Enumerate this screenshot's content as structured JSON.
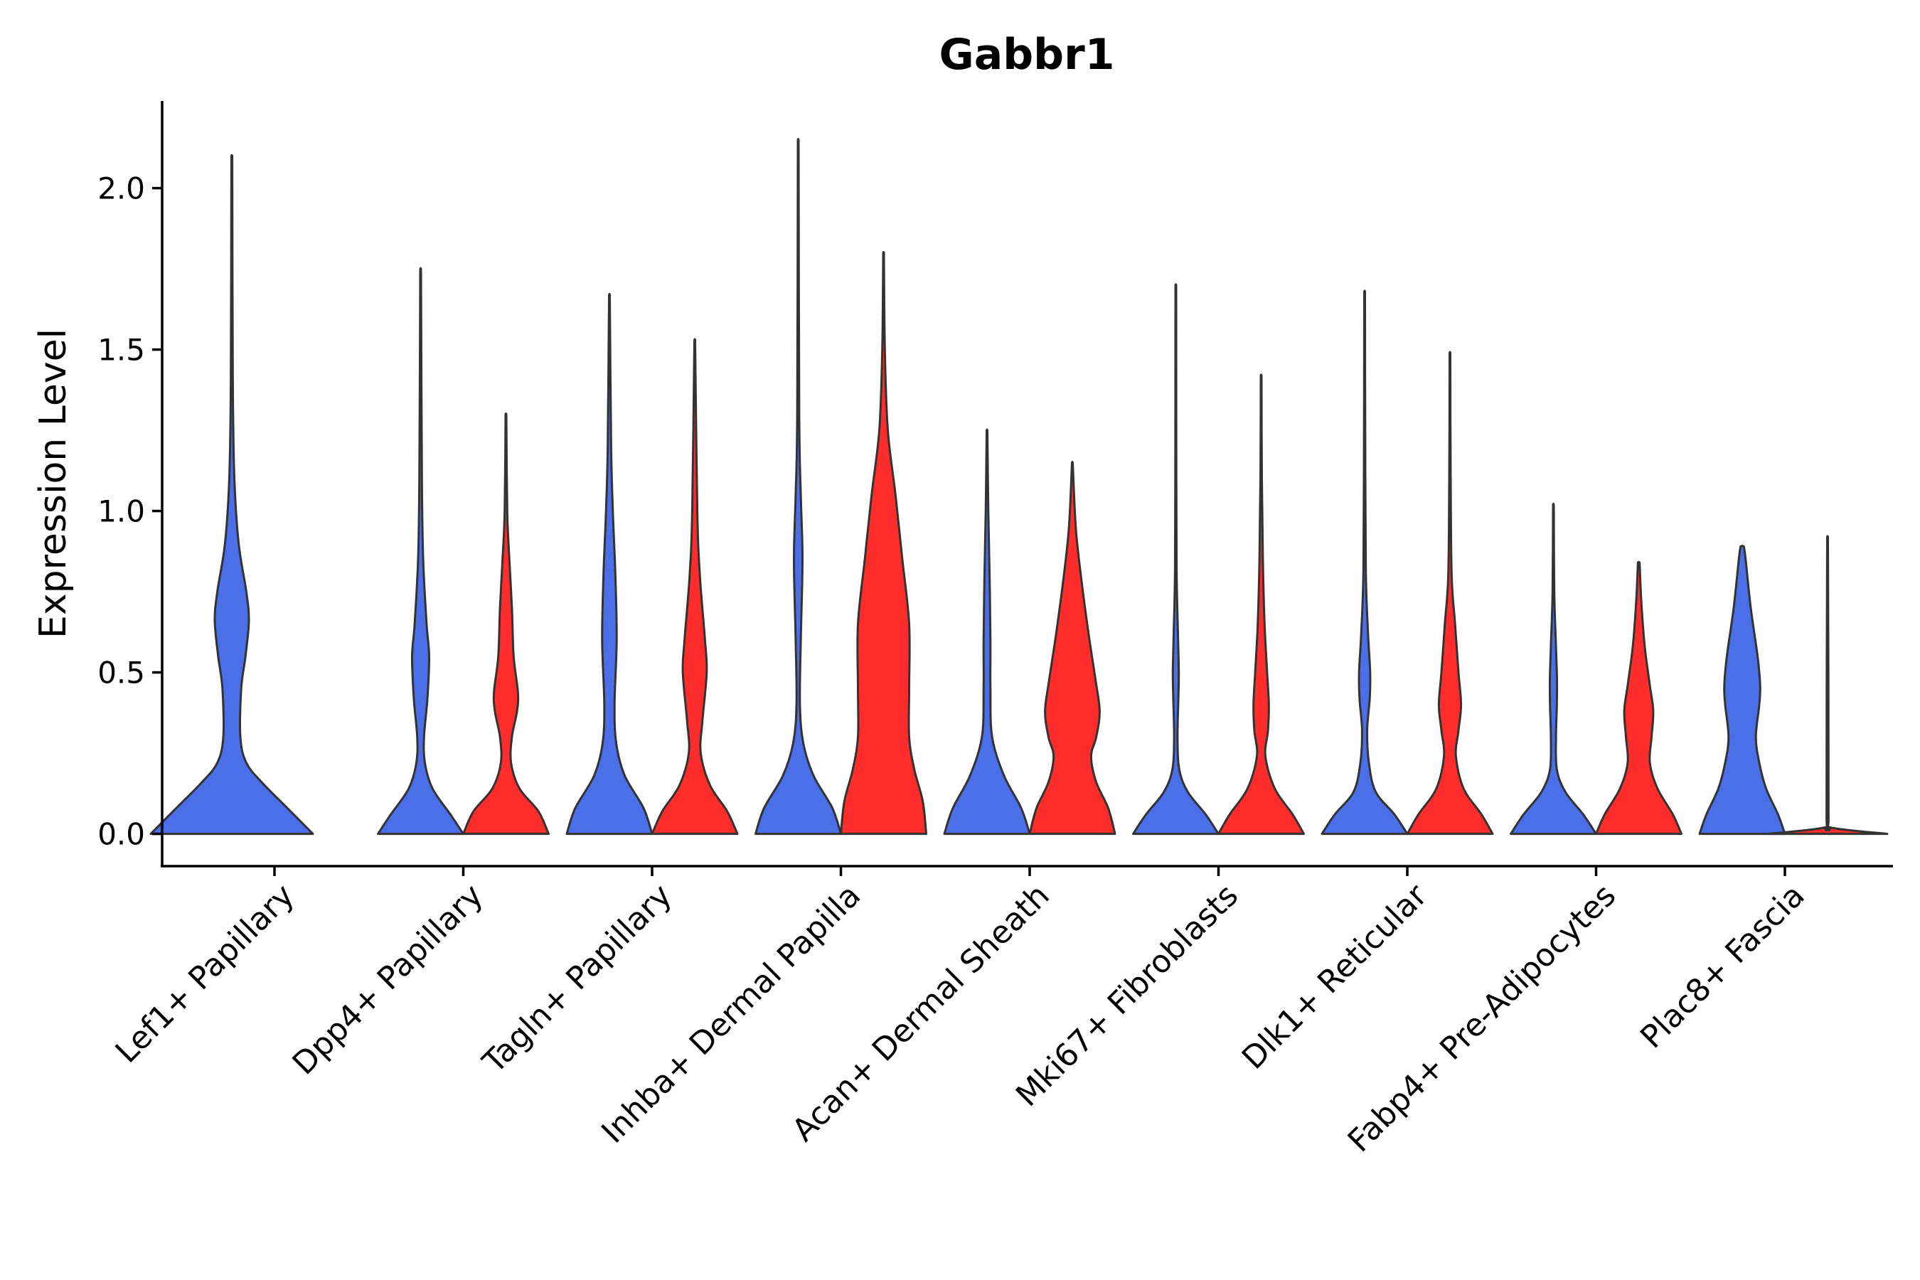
{
  "chart_data": {
    "type": "violin",
    "title": "Gabbr1",
    "xlabel": "",
    "ylabel": "Expression Level",
    "ylim": [
      -0.1,
      2.27
    ],
    "yticks": [
      0.0,
      0.5,
      1.0,
      1.5,
      2.0
    ],
    "ytick_labels": [
      "0.0",
      "0.5",
      "1.0",
      "1.5",
      "2.0"
    ],
    "categories": [
      "Lef1+ Papillary",
      "Dpp4+ Papillary",
      "Tagln+ Papillary",
      "Inhba+ Dermal Papilla",
      "Acan+ Dermal Sheath",
      "Mki67+ Fibroblasts",
      "Dlk1+ Reticular",
      "Fabp4+ Pre-Adipocytes",
      "Plac8+ Fascia"
    ],
    "series": [
      {
        "name": "group-blue",
        "color": "#4A6FE8",
        "violins": [
          {
            "max": 2.1,
            "density": [
              [
                0,
                0.95
              ],
              [
                0.08,
                0.65
              ],
              [
                0.16,
                0.35
              ],
              [
                0.22,
                0.17
              ],
              [
                0.3,
                0.1
              ],
              [
                0.45,
                0.11
              ],
              [
                0.55,
                0.16
              ],
              [
                0.66,
                0.2
              ],
              [
                0.75,
                0.17
              ],
              [
                0.9,
                0.08
              ],
              [
                1.1,
                0.03
              ],
              [
                1.4,
                0.012
              ],
              [
                2.1,
                0.005
              ]
            ]
          },
          {
            "max": 1.75,
            "density": [
              [
                0,
                0.5
              ],
              [
                0.06,
                0.35
              ],
              [
                0.14,
                0.14
              ],
              [
                0.22,
                0.05
              ],
              [
                0.3,
                0.04
              ],
              [
                0.42,
                0.08
              ],
              [
                0.55,
                0.1
              ],
              [
                0.65,
                0.07
              ],
              [
                0.85,
                0.03
              ],
              [
                1.1,
                0.015
              ],
              [
                1.75,
                0.004
              ]
            ]
          },
          {
            "max": 1.67,
            "density": [
              [
                0,
                0.5
              ],
              [
                0.08,
                0.4
              ],
              [
                0.18,
                0.18
              ],
              [
                0.28,
                0.08
              ],
              [
                0.4,
                0.06
              ],
              [
                0.6,
                0.085
              ],
              [
                0.8,
                0.07
              ],
              [
                1.0,
                0.04
              ],
              [
                1.2,
                0.02
              ],
              [
                1.67,
                0.004
              ]
            ]
          },
          {
            "max": 2.15,
            "density": [
              [
                0,
                0.5
              ],
              [
                0.08,
                0.4
              ],
              [
                0.18,
                0.18
              ],
              [
                0.28,
                0.06
              ],
              [
                0.4,
                0.02
              ],
              [
                0.6,
                0.03
              ],
              [
                0.85,
                0.05
              ],
              [
                1.05,
                0.03
              ],
              [
                1.3,
                0.012
              ],
              [
                2.15,
                0.004
              ]
            ]
          },
          {
            "max": 1.25,
            "density": [
              [
                0,
                0.5
              ],
              [
                0.08,
                0.4
              ],
              [
                0.18,
                0.2
              ],
              [
                0.3,
                0.06
              ],
              [
                0.45,
                0.04
              ],
              [
                0.6,
                0.04
              ],
              [
                0.8,
                0.03
              ],
              [
                1.0,
                0.015
              ],
              [
                1.25,
                0.004
              ]
            ]
          },
          {
            "max": 1.7,
            "density": [
              [
                0,
                0.5
              ],
              [
                0.06,
                0.35
              ],
              [
                0.13,
                0.14
              ],
              [
                0.2,
                0.04
              ],
              [
                0.3,
                0.02
              ],
              [
                0.42,
                0.03
              ],
              [
                0.5,
                0.035
              ],
              [
                0.62,
                0.025
              ],
              [
                0.8,
                0.01
              ],
              [
                1.1,
                0.006
              ],
              [
                1.7,
                0.004
              ]
            ]
          },
          {
            "max": 1.68,
            "density": [
              [
                0,
                0.5
              ],
              [
                0.06,
                0.35
              ],
              [
                0.13,
                0.13
              ],
              [
                0.22,
                0.05
              ],
              [
                0.32,
                0.03
              ],
              [
                0.42,
                0.06
              ],
              [
                0.5,
                0.065
              ],
              [
                0.62,
                0.04
              ],
              [
                0.8,
                0.015
              ],
              [
                1.1,
                0.008
              ],
              [
                1.68,
                0.004
              ]
            ]
          },
          {
            "max": 1.02,
            "density": [
              [
                0,
                0.5
              ],
              [
                0.06,
                0.35
              ],
              [
                0.13,
                0.14
              ],
              [
                0.2,
                0.04
              ],
              [
                0.3,
                0.03
              ],
              [
                0.4,
                0.04
              ],
              [
                0.48,
                0.042
              ],
              [
                0.58,
                0.03
              ],
              [
                0.75,
                0.01
              ],
              [
                1.02,
                0.004
              ]
            ]
          },
          {
            "max": 0.89,
            "density": [
              [
                0,
                0.5
              ],
              [
                0.06,
                0.42
              ],
              [
                0.14,
                0.28
              ],
              [
                0.22,
                0.2
              ],
              [
                0.3,
                0.16
              ],
              [
                0.4,
                0.2
              ],
              [
                0.46,
                0.21
              ],
              [
                0.55,
                0.18
              ],
              [
                0.7,
                0.1
              ],
              [
                0.85,
                0.04
              ],
              [
                0.89,
                0.02
              ]
            ]
          }
        ]
      },
      {
        "name": "group-red",
        "color": "#FF2C2C",
        "violins": [
          null,
          {
            "max": 1.3,
            "density": [
              [
                0,
                0.5
              ],
              [
                0.07,
                0.38
              ],
              [
                0.14,
                0.16
              ],
              [
                0.22,
                0.06
              ],
              [
                0.3,
                0.07
              ],
              [
                0.38,
                0.13
              ],
              [
                0.44,
                0.14
              ],
              [
                0.55,
                0.09
              ],
              [
                0.7,
                0.07
              ],
              [
                0.85,
                0.04
              ],
              [
                1.0,
                0.015
              ],
              [
                1.3,
                0.004
              ]
            ]
          },
          {
            "max": 1.53,
            "density": [
              [
                0,
                0.5
              ],
              [
                0.07,
                0.38
              ],
              [
                0.15,
                0.18
              ],
              [
                0.25,
                0.07
              ],
              [
                0.35,
                0.09
              ],
              [
                0.5,
                0.14
              ],
              [
                0.6,
                0.12
              ],
              [
                0.8,
                0.06
              ],
              [
                1.0,
                0.03
              ],
              [
                1.53,
                0.004
              ]
            ]
          },
          {
            "max": 1.8,
            "density": [
              [
                0,
                0.5
              ],
              [
                0.1,
                0.46
              ],
              [
                0.2,
                0.36
              ],
              [
                0.3,
                0.3
              ],
              [
                0.45,
                0.3
              ],
              [
                0.65,
                0.3
              ],
              [
                0.85,
                0.22
              ],
              [
                1.05,
                0.14
              ],
              [
                1.25,
                0.05
              ],
              [
                1.5,
                0.015
              ],
              [
                1.8,
                0.004
              ]
            ]
          },
          {
            "max": 1.15,
            "density": [
              [
                0,
                0.5
              ],
              [
                0.08,
                0.42
              ],
              [
                0.16,
                0.28
              ],
              [
                0.24,
                0.22
              ],
              [
                0.3,
                0.28
              ],
              [
                0.38,
                0.32
              ],
              [
                0.48,
                0.27
              ],
              [
                0.62,
                0.19
              ],
              [
                0.8,
                0.1
              ],
              [
                0.95,
                0.04
              ],
              [
                1.15,
                0.004
              ]
            ]
          },
          {
            "max": 1.42,
            "density": [
              [
                0,
                0.5
              ],
              [
                0.06,
                0.37
              ],
              [
                0.14,
                0.16
              ],
              [
                0.24,
                0.05
              ],
              [
                0.32,
                0.08
              ],
              [
                0.4,
                0.09
              ],
              [
                0.5,
                0.07
              ],
              [
                0.65,
                0.04
              ],
              [
                0.85,
                0.02
              ],
              [
                1.1,
                0.008
              ],
              [
                1.42,
                0.004
              ]
            ]
          },
          {
            "max": 1.49,
            "density": [
              [
                0,
                0.5
              ],
              [
                0.06,
                0.37
              ],
              [
                0.14,
                0.16
              ],
              [
                0.24,
                0.07
              ],
              [
                0.32,
                0.1
              ],
              [
                0.4,
                0.13
              ],
              [
                0.5,
                0.1
              ],
              [
                0.65,
                0.06
              ],
              [
                0.8,
                0.02
              ],
              [
                1.1,
                0.008
              ],
              [
                1.49,
                0.004
              ]
            ]
          },
          {
            "max": 0.84,
            "density": [
              [
                0,
                0.5
              ],
              [
                0.06,
                0.4
              ],
              [
                0.14,
                0.22
              ],
              [
                0.22,
                0.13
              ],
              [
                0.3,
                0.15
              ],
              [
                0.38,
                0.17
              ],
              [
                0.46,
                0.13
              ],
              [
                0.58,
                0.07
              ],
              [
                0.72,
                0.03
              ],
              [
                0.84,
                0.01
              ]
            ]
          },
          {
            "max": 0.92,
            "density": [
              [
                0,
                0.7
              ],
              [
                0.02,
                0.03
              ],
              [
                0.05,
                0.012
              ],
              [
                0.45,
                0.01
              ],
              [
                0.92,
                0.004
              ]
            ]
          }
        ]
      }
    ]
  }
}
